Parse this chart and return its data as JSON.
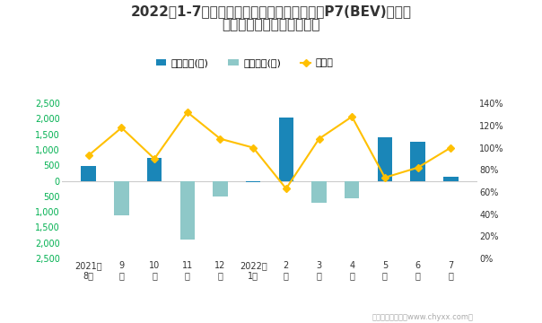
{
  "title_line1": "2022年1-7月肇庆小鹏旗下最畅销轿车（小鹏P7(BEV)）近一",
  "title_line2": "年库存情况及产销率统计图",
  "categories": [
    "2021年\n8月",
    "9\n月",
    "10\n月",
    "11\n月",
    "12\n月",
    "2022年\n1月",
    "2\n月",
    "3\n月",
    "4\n月",
    "5\n月",
    "6\n月",
    "7\n月"
  ],
  "jiiya_values": [
    480,
    0,
    750,
    0,
    0,
    -50,
    2050,
    0,
    0,
    1400,
    1250,
    130
  ],
  "qingcang_values": [
    0,
    -1100,
    0,
    -1900,
    -500,
    0,
    0,
    -700,
    -550,
    0,
    0,
    0
  ],
  "rate_values": [
    0.93,
    1.18,
    0.9,
    1.32,
    1.08,
    1.0,
    0.63,
    1.08,
    1.28,
    0.73,
    0.82,
    1.0
  ],
  "bar_color_jiiya": "#1A86B8",
  "bar_color_qingcang": "#8EC8C8",
  "line_color": "#FFC000",
  "background_color": "#FFFFFF",
  "title_fontsize": 11,
  "legend_fontsize": 8,
  "tick_fontsize": 7,
  "left_tick_color": "#00B050",
  "footer_text": "制图：智研咨询（www.chyxx.com）"
}
